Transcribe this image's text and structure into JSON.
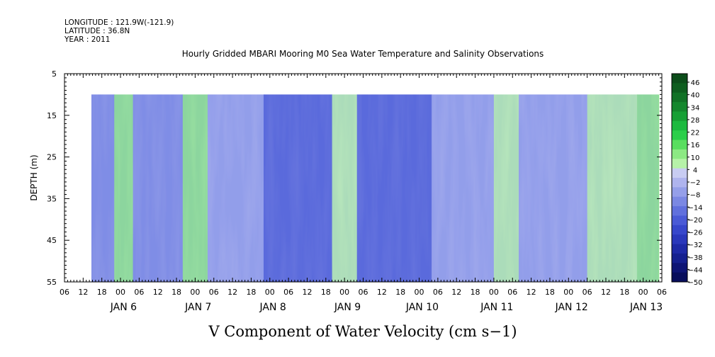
{
  "header": {
    "longitude": "LONGITUDE : 121.9W(-121.9)",
    "latitude": "LATITUDE : 36.8N",
    "year": "YEAR : 2011"
  },
  "chart_data": {
    "type": "heatmap",
    "title": "Hourly Gridded MBARI Mooring M0 Sea Water Temperature and Salinity Observations",
    "xlabel": "V Component of Water Velocity (cm s−1)",
    "ylabel": "DEPTH (m)",
    "x_range_hours_from_jan6_00": [
      -18,
      174
    ],
    "data_x_range_hours_from_jan6_00": [
      -12,
      173
    ],
    "ylim": [
      55,
      5
    ],
    "data_depth_range": [
      10,
      55
    ],
    "y_ticks": [
      "5",
      "15",
      "25",
      "35",
      "45",
      "55"
    ],
    "hour_tick_labels": [
      "06",
      "12",
      "18",
      "00",
      "06",
      "12",
      "18",
      "00",
      "06",
      "12",
      "18",
      "00",
      "06",
      "12",
      "18",
      "00",
      "06",
      "12",
      "18",
      "00",
      "06",
      "12",
      "18",
      "00",
      "06",
      "12",
      "18",
      "00",
      "06",
      "12",
      "18",
      "00",
      "06"
    ],
    "day_labels": [
      "JAN  6",
      "JAN  7",
      "JAN  8",
      "JAN  9",
      "JAN 10",
      "JAN 11",
      "JAN 12",
      "JAN 13"
    ],
    "colorbar": {
      "labels": [
        "46",
        "40",
        "34",
        "28",
        "22",
        "16",
        "10",
        "4",
        "−2",
        "−8",
        "−14",
        "−20",
        "−26",
        "−32",
        "−38",
        "−44",
        "−50"
      ],
      "colors_top_to_bottom": [
        "#0c4d1a",
        "#0e5e1f",
        "#117226",
        "#14872d",
        "#17a035",
        "#1cba3f",
        "#2bcf4a",
        "#59de5f",
        "#8ce983",
        "#b6f2a8",
        "#c8ccf2",
        "#afb4ee",
        "#959fe9",
        "#7b88e3",
        "#6170dd",
        "#4a5ad6",
        "#3747cb",
        "#2a38bb",
        "#1e2aa6",
        "#15208f",
        "#0e1575",
        "#080e5c"
      ]
    },
    "field_description_values_cm_s": {
      "bands": [
        {
          "hour_start": -12,
          "hour_end": -2,
          "value": -10
        },
        {
          "hour_start": -2,
          "hour_end": 4,
          "value": 12
        },
        {
          "hour_start": 4,
          "hour_end": 20,
          "value": -12
        },
        {
          "hour_start": 20,
          "hour_end": 28,
          "value": 14
        },
        {
          "hour_start": 28,
          "hour_end": 46,
          "value": -8
        },
        {
          "hour_start": 46,
          "hour_end": 68,
          "value": -20
        },
        {
          "hour_start": 68,
          "hour_end": 76,
          "value": 8
        },
        {
          "hour_start": 76,
          "hour_end": 100,
          "value": -22
        },
        {
          "hour_start": 100,
          "hour_end": 120,
          "value": -4
        },
        {
          "hour_start": 120,
          "hour_end": 128,
          "value": 10
        },
        {
          "hour_start": 128,
          "hour_end": 150,
          "value": -6
        },
        {
          "hour_start": 150,
          "hour_end": 166,
          "value": 8
        },
        {
          "hour_start": 166,
          "hour_end": 173,
          "value": 14
        }
      ]
    }
  }
}
